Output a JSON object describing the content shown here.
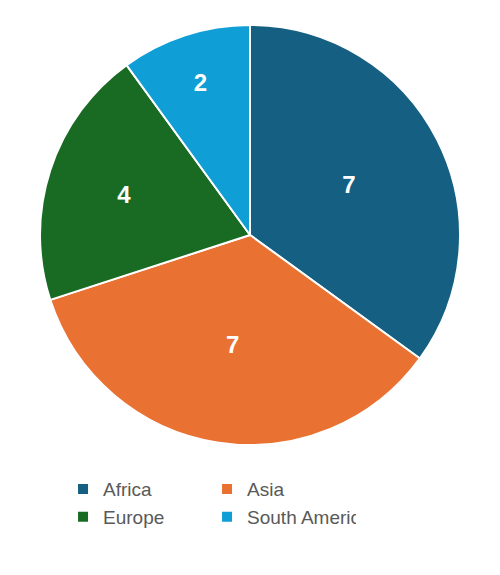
{
  "chart_data": {
    "type": "pie",
    "categories": [
      "Africa",
      "Asia",
      "Europe",
      "South America"
    ],
    "values": [
      7,
      7,
      4,
      2
    ],
    "colors": [
      "#156082",
      "#e97132",
      "#196b24",
      "#0f9ed5"
    ],
    "data_labels": true,
    "legend": "bottom"
  }
}
